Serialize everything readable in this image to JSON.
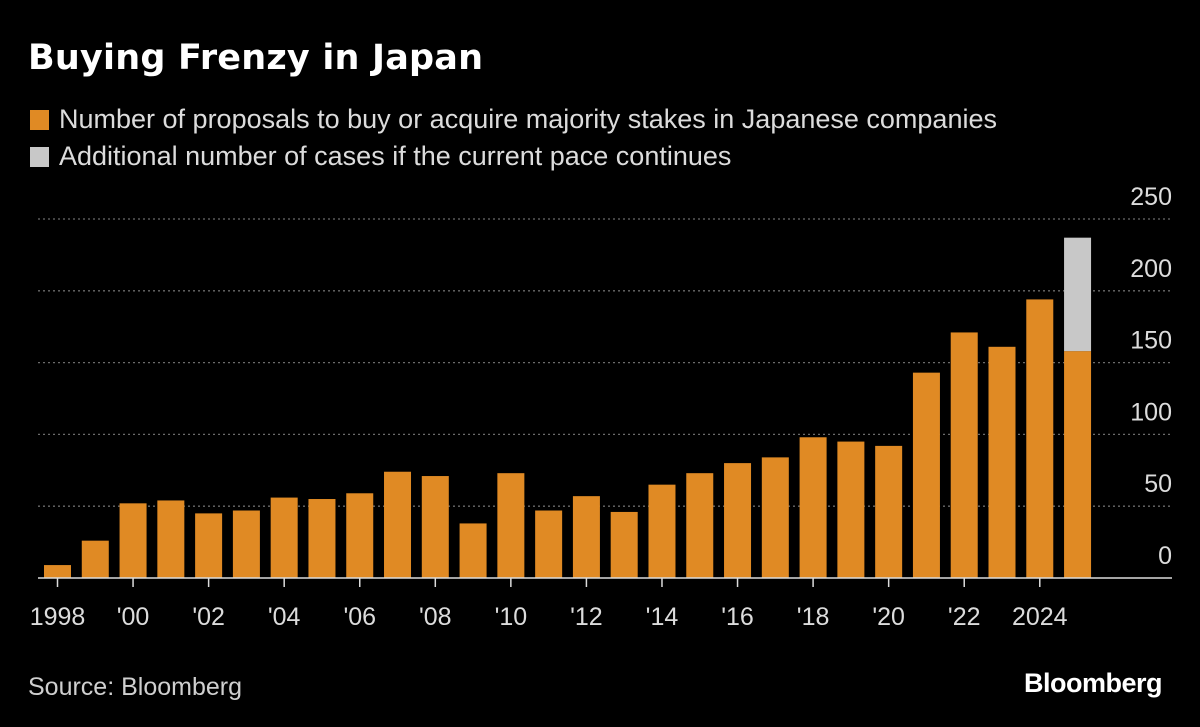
{
  "title": "Buying Frenzy in Japan",
  "legend": [
    {
      "label": "Number of proposals to buy or acquire majority stakes in Japanese companies",
      "color": "#e08a24"
    },
    {
      "label": "Additional number of cases if the current pace continues",
      "color": "#c8c8c8"
    }
  ],
  "source": "Source: Bloomberg",
  "brand": "Bloomberg",
  "colors": {
    "background": "#000000",
    "primary": "#e08a24",
    "projection": "#c8c8c8",
    "grid": "#6b6b6b",
    "axis": "#dcdcdc"
  },
  "chart_data": {
    "type": "bar",
    "stacked": true,
    "categories": [
      "1998",
      "1999",
      "2000",
      "2001",
      "2002",
      "2003",
      "2004",
      "2005",
      "2006",
      "2007",
      "2008",
      "2009",
      "2010",
      "2011",
      "2012",
      "2013",
      "2014",
      "2015",
      "2016",
      "2017",
      "2018",
      "2019",
      "2020",
      "2021",
      "2022",
      "2023",
      "2024",
      "2025"
    ],
    "series": [
      {
        "name": "Number of proposals to buy or acquire majority stakes in Japanese companies",
        "values": [
          9,
          26,
          52,
          54,
          45,
          47,
          56,
          55,
          59,
          74,
          71,
          38,
          73,
          47,
          57,
          46,
          65,
          73,
          80,
          84,
          98,
          95,
          92,
          143,
          171,
          161,
          194,
          158
        ]
      },
      {
        "name": "Additional number of cases if the current pace continues",
        "values": [
          0,
          0,
          0,
          0,
          0,
          0,
          0,
          0,
          0,
          0,
          0,
          0,
          0,
          0,
          0,
          0,
          0,
          0,
          0,
          0,
          0,
          0,
          0,
          0,
          0,
          0,
          0,
          79
        ]
      }
    ],
    "x_tick_labels": [
      "1998",
      "'00",
      "'02",
      "'04",
      "'06",
      "'08",
      "'10",
      "'12",
      "'14",
      "'16",
      "'18",
      "'20",
      "'22",
      "2024"
    ],
    "x_tick_indices": [
      0,
      2,
      4,
      6,
      8,
      10,
      12,
      14,
      16,
      18,
      20,
      22,
      24,
      26
    ],
    "y_ticks": [
      0,
      50,
      100,
      150,
      200,
      250
    ],
    "ylim": [
      0,
      250
    ],
    "xlabel": "",
    "ylabel": "",
    "grid": true,
    "y_axis_side": "right"
  }
}
